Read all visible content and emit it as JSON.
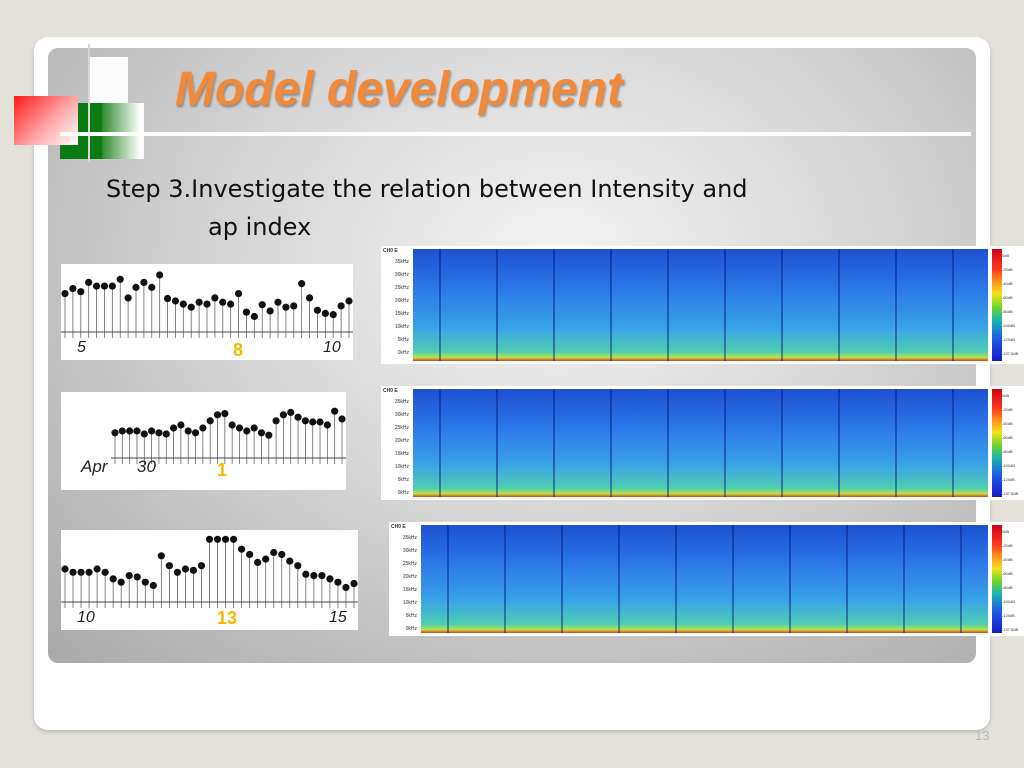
{
  "slide": {
    "title": "Model development",
    "step_line1": "Step 3.Investigate the relation between Intensity and",
    "step_line2": "ap index",
    "page_number": "13"
  },
  "ap_charts": [
    {
      "start_label": "5",
      "event_label": "8",
      "end_label": "10",
      "points": [
        0.62,
        0.7,
        0.65,
        0.8,
        0.74,
        0.74,
        0.74,
        0.85,
        0.55,
        0.72,
        0.8,
        0.72,
        0.92,
        0.54,
        0.5,
        0.45,
        0.4,
        0.48,
        0.45,
        0.55,
        0.48,
        0.45,
        0.62,
        0.32,
        0.25,
        0.44,
        0.34,
        0.48,
        0.4,
        0.42,
        0.78,
        0.55,
        0.35,
        0.3,
        0.28,
        0.42,
        0.5
      ]
    },
    {
      "start_label": "Apr",
      "mid_label": "30",
      "event_label": "1",
      "points": [
        0.42,
        0.45,
        0.45,
        0.45,
        0.4,
        0.45,
        0.42,
        0.4,
        0.5,
        0.55,
        0.45,
        0.42,
        0.5,
        0.62,
        0.72,
        0.74,
        0.55,
        0.5,
        0.45,
        0.5,
        0.42,
        0.38,
        0.62,
        0.72,
        0.76,
        0.68,
        0.62,
        0.6,
        0.6,
        0.55,
        0.78,
        0.65
      ]
    },
    {
      "start_label": "10",
      "event_label": "13",
      "end_label": "15",
      "points": [
        0.5,
        0.45,
        0.45,
        0.45,
        0.5,
        0.45,
        0.35,
        0.3,
        0.4,
        0.38,
        0.3,
        0.25,
        0.7,
        0.55,
        0.45,
        0.5,
        0.48,
        0.55,
        0.95,
        0.95,
        0.95,
        0.95,
        0.8,
        0.72,
        0.6,
        0.65,
        0.75,
        0.72,
        0.62,
        0.55,
        0.42,
        0.4,
        0.4,
        0.35,
        0.3,
        0.22,
        0.28
      ]
    }
  ],
  "spectrogram": {
    "title": "CH0 E",
    "freq_labels": [
      "35kHz",
      "30kHz",
      "25kHz",
      "20kHz",
      "15kHz",
      "10kHz",
      "5kHz",
      "0kHz"
    ],
    "db_labels": [
      "0dB",
      "-20dB",
      "-40dB",
      "-60dB",
      "-80dB",
      "-100dB",
      "-120dB",
      "-137.5dB"
    ]
  },
  "colors": {
    "title": "#f08a3a",
    "accent_red": "#ff1a1a",
    "accent_green": "#0a7a12"
  }
}
